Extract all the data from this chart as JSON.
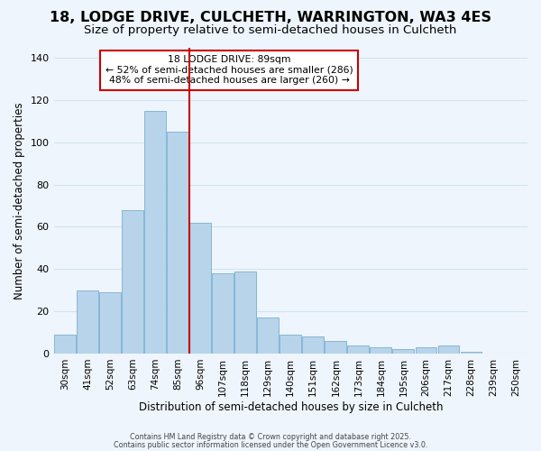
{
  "title": "18, LODGE DRIVE, CULCHETH, WARRINGTON, WA3 4ES",
  "subtitle": "Size of property relative to semi-detached houses in Culcheth",
  "xlabel": "Distribution of semi-detached houses by size in Culcheth",
  "ylabel": "Number of semi-detached properties",
  "categories": [
    "30sqm",
    "41sqm",
    "52sqm",
    "63sqm",
    "74sqm",
    "85sqm",
    "96sqm",
    "107sqm",
    "118sqm",
    "129sqm",
    "140sqm",
    "151sqm",
    "162sqm",
    "173sqm",
    "184sqm",
    "195sqm",
    "206sqm",
    "217sqm",
    "228sqm",
    "239sqm",
    "250sqm"
  ],
  "values": [
    9,
    30,
    29,
    68,
    115,
    105,
    62,
    38,
    39,
    17,
    9,
    8,
    6,
    4,
    3,
    2,
    3,
    4,
    1,
    0
  ],
  "bar_color": "#b8d4ea",
  "bar_edge_color": "#7aafd4",
  "grid_color": "#d0e4f0",
  "background_color": "#eef5fc",
  "vline_x": 5.5,
  "vline_color": "#cc0000",
  "annotation_title": "18 LODGE DRIVE: 89sqm",
  "annotation_line1": "← 52% of semi-detached houses are smaller (286)",
  "annotation_line2": "48% of semi-detached houses are larger (260) →",
  "annotation_box_color": "#ffffff",
  "annotation_box_edge": "#cc0000",
  "ylim": [
    0,
    145
  ],
  "yticks": [
    0,
    20,
    40,
    60,
    80,
    100,
    120,
    140
  ],
  "footer1": "Contains HM Land Registry data © Crown copyright and database right 2025.",
  "footer2": "Contains public sector information licensed under the Open Government Licence v3.0.",
  "title_fontsize": 11.5,
  "subtitle_fontsize": 9.5,
  "ylabel_fontsize": 8.5,
  "xlabel_fontsize": 8.5
}
